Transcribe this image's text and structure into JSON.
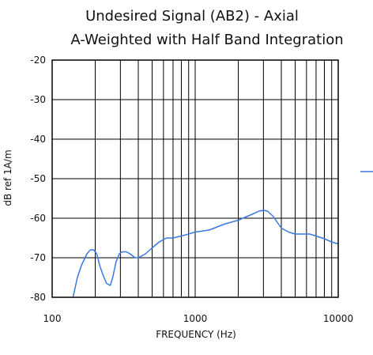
{
  "chart_data": {
    "type": "line",
    "title": "Undesired Signal (AB2) - Axial",
    "subtitle": "A-Weighted with Half Band Integration",
    "xlabel": "FREQUENCY (Hz)",
    "ylabel": "dB ref 1A/m",
    "xscale": "log",
    "xlim": [
      100,
      10000
    ],
    "ylim": [
      -80,
      -20
    ],
    "grid": true,
    "legend": "right",
    "x_ticks": [
      {
        "value": 100,
        "label": "100"
      },
      {
        "value": 1000,
        "label": "1000"
      },
      {
        "value": 10000,
        "label": "10000"
      }
    ],
    "y_ticks": [
      {
        "value": -20,
        "label": "-20"
      },
      {
        "value": -30,
        "label": "-30"
      },
      {
        "value": -40,
        "label": "-40"
      },
      {
        "value": -50,
        "label": "-50"
      },
      {
        "value": -60,
        "label": "-60"
      },
      {
        "value": -70,
        "label": "-70"
      },
      {
        "value": -80,
        "label": "-80"
      }
    ],
    "series": [
      {
        "name": "",
        "color": "#3a78e0",
        "x": [
          140,
          150,
          160,
          175,
          185,
          195,
          205,
          215,
          225,
          240,
          255,
          265,
          280,
          295,
          310,
          330,
          350,
          380,
          400,
          450,
          500,
          560,
          630,
          700,
          800,
          900,
          1000,
          1250,
          1600,
          2000,
          2500,
          2800,
          3000,
          3200,
          3500,
          4000,
          4500,
          5000,
          5600,
          6300,
          7000,
          8000,
          9000,
          10000
        ],
        "y": [
          -80,
          -75,
          -72,
          -69,
          -68,
          -68,
          -69,
          -72,
          -74,
          -76.5,
          -77,
          -75,
          -71,
          -69,
          -68.5,
          -68.5,
          -69,
          -70,
          -70,
          -69,
          -67.5,
          -66,
          -65,
          -65,
          -64.5,
          -64,
          -63.5,
          -63,
          -61.5,
          -60.5,
          -59,
          -58.2,
          -58,
          -58.2,
          -59.5,
          -62.5,
          -63.5,
          -64,
          -64,
          -64,
          -64.5,
          -65.2,
          -66,
          -66.5
        ]
      }
    ]
  }
}
